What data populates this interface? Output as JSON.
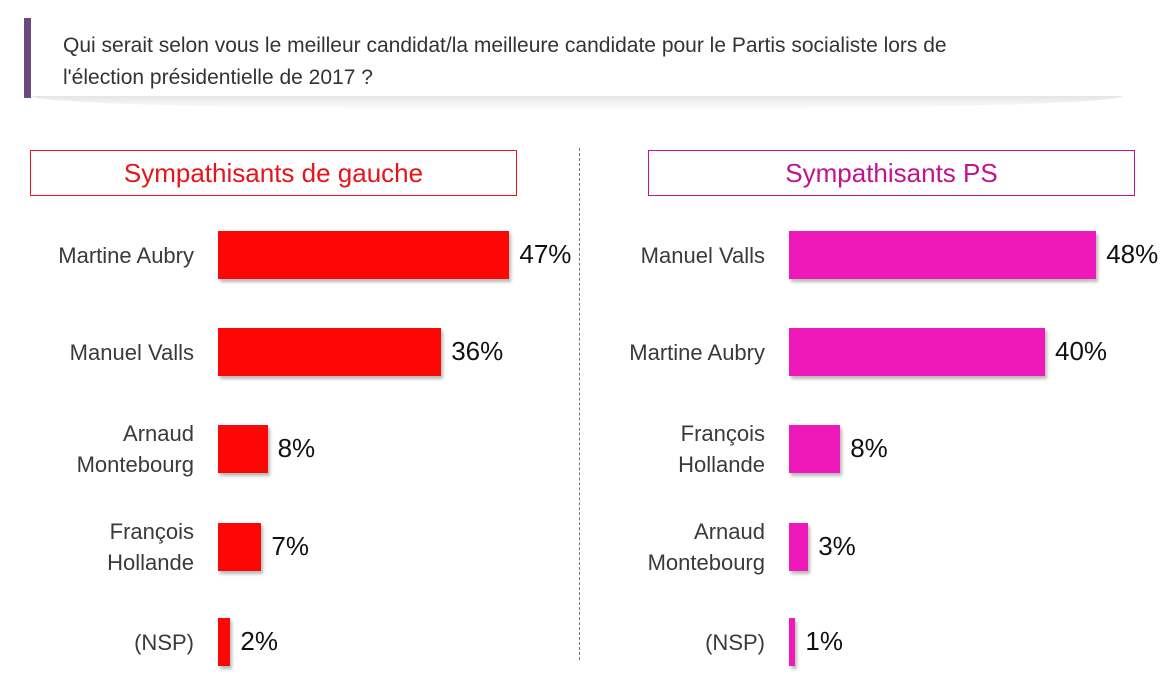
{
  "question": {
    "line1": "Qui serait selon vous le meilleur candidat/la meilleure candidate pour le Partis socialiste lors de",
    "line2": "l'élection présidentielle de 2017 ?"
  },
  "chart_data": [
    {
      "type": "bar",
      "orientation": "horizontal",
      "title": "Sympathisants de gauche",
      "categories": [
        [
          "Martine Aubry"
        ],
        [
          "Manuel Valls"
        ],
        [
          "Arnaud",
          "Montebourg"
        ],
        [
          "François",
          "Hollande"
        ],
        [
          "(NSP)"
        ]
      ],
      "values": [
        47,
        36,
        8,
        7,
        2
      ],
      "value_labels": [
        "47%",
        "36%",
        "8%",
        "7%",
        "2%"
      ],
      "unit": "%",
      "color": "#fc0606",
      "xlim": [
        0,
        50
      ]
    },
    {
      "type": "bar",
      "orientation": "horizontal",
      "title": "Sympathisants PS",
      "categories": [
        [
          "Manuel Valls"
        ],
        [
          "Martine Aubry"
        ],
        [
          "François",
          "Hollande"
        ],
        [
          "Arnaud",
          "Montebourg"
        ],
        [
          "(NSP)"
        ]
      ],
      "values": [
        48,
        40,
        8,
        3,
        1
      ],
      "value_labels": [
        "48%",
        "40%",
        "8%",
        "3%",
        "1%"
      ],
      "unit": "%",
      "color": "#ef18b8",
      "xlim": [
        0,
        50
      ]
    }
  ]
}
